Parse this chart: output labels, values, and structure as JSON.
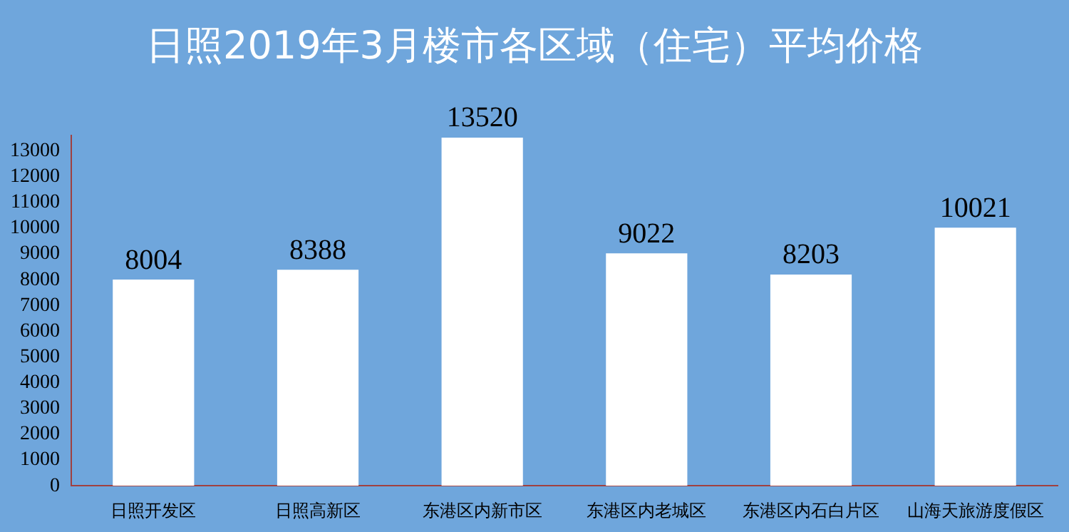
{
  "chart_data": {
    "type": "bar",
    "title": "日照2019年3月楼市各区域（住宅）平均价格",
    "categories": [
      "日照开发区",
      "日照高新区",
      "东港区内新市区",
      "东港区内老城区",
      "东港区内石白片区",
      "山海天旅游度假区"
    ],
    "values": [
      8004,
      8388,
      13520,
      9022,
      8203,
      10021
    ],
    "color": "#ffffff",
    "ylim": [
      0,
      13600
    ],
    "yticks": [
      0,
      1000,
      2000,
      3000,
      4000,
      5000,
      6000,
      7000,
      8000,
      9000,
      10000,
      11000,
      12000,
      13000
    ],
    "grid": false,
    "legend": false,
    "data_labels": true
  }
}
